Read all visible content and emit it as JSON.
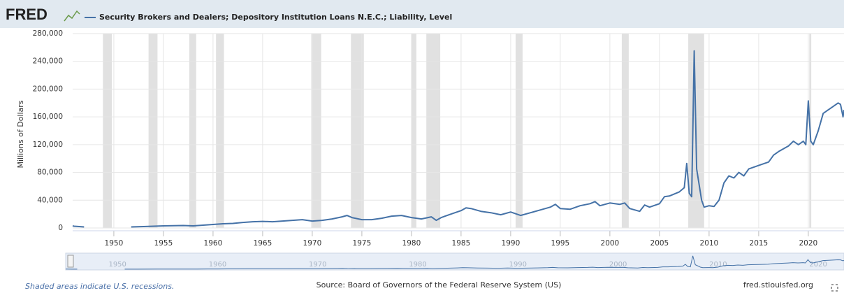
{
  "chart_data": {
    "type": "line",
    "logo": "FRED",
    "title": "Security Brokers and Dealers; Depository Institution Loans N.E.C.; Liability, Level",
    "ylabel": "Millions of Dollars",
    "source": "Source: Board of Governors of the Federal Reserve System (US)",
    "site": "fred.stlouisfed.org",
    "recession_note": "Shaded areas indicate U.S. recessions.",
    "grid": true,
    "xlim": [
      1945.85,
      2023.6
    ],
    "xticks": [
      1950,
      1955,
      1960,
      1965,
      1970,
      1975,
      1980,
      1985,
      1990,
      1995,
      2000,
      2005,
      2010,
      2015,
      2020
    ],
    "ylim": [
      0,
      280000
    ],
    "yticks": [
      0,
      {
        "value": 40000,
        "label": "40,000"
      },
      {
        "value": 80000,
        "label": "80,000"
      },
      {
        "value": 120000,
        "label": "120,000"
      },
      {
        "value": 160000,
        "label": "160,000"
      },
      {
        "value": 200000,
        "label": "200,000"
      },
      {
        "value": 240000,
        "label": "240,000"
      },
      {
        "value": 280000,
        "label": "280,000"
      }
    ],
    "recessions": [
      [
        1948.9,
        1949.8
      ],
      [
        1953.5,
        1954.4
      ],
      [
        1957.6,
        1958.3
      ],
      [
        1960.3,
        1961.1
      ],
      [
        1969.9,
        1970.9
      ],
      [
        1973.9,
        1975.2
      ],
      [
        1980.0,
        1980.5
      ],
      [
        1981.5,
        1982.9
      ],
      [
        1990.5,
        1991.2
      ],
      [
        2001.2,
        2001.9
      ],
      [
        2007.9,
        2009.5
      ],
      [
        2020.1,
        2020.3
      ]
    ],
    "x": [
      1945.85,
      1946.0,
      1946.5,
      1947.0,
      1947.25,
      1951.75,
      1953,
      1955,
      1957,
      1958,
      1959,
      1960,
      1961,
      1962,
      1963,
      1964,
      1965,
      1966,
      1967,
      1968,
      1969,
      1970,
      1971,
      1972,
      1973,
      1973.5,
      1974,
      1975,
      1976,
      1977,
      1978,
      1979,
      1980,
      1981,
      1982,
      1982.5,
      1983,
      1984,
      1985,
      1985.5,
      1986,
      1987,
      1988,
      1989,
      1990,
      1991,
      1992,
      1993,
      1994,
      1994.5,
      1995,
      1996,
      1997,
      1998,
      1998.5,
      1999,
      2000,
      2001,
      2001.5,
      2002,
      2003,
      2003.5,
      2004,
      2005,
      2005.5,
      2006,
      2007,
      2007.5,
      2007.75,
      2008.0,
      2008.25,
      2008.5,
      2008.75,
      2009.25,
      2009.5,
      2010,
      2010.5,
      2011,
      2011.5,
      2012,
      2012.5,
      2013,
      2013.5,
      2014,
      2015,
      2016,
      2016.5,
      2017,
      2018,
      2018.5,
      2019,
      2019.5,
      2019.75,
      2020.0,
      2020.25,
      2020.5,
      2021,
      2021.5,
      2022,
      2022.5,
      2023,
      2023.25,
      2023.5,
      2023.6
    ],
    "series": [
      {
        "name": "Security Brokers and Dealers; Depository Institution Loans N.E.C.; Liability, Level",
        "color": "#4572a7",
        "values": [
          3000,
          2500,
          2000,
          1500,
          null,
          1500,
          2000,
          3000,
          3500,
          3000,
          4000,
          5000,
          6000,
          6500,
          8000,
          9000,
          9500,
          9000,
          10000,
          11000,
          12000,
          10000,
          11000,
          13000,
          16000,
          18000,
          15000,
          12000,
          12000,
          14000,
          17000,
          18000,
          15000,
          13000,
          16000,
          11000,
          15000,
          20000,
          25000,
          29000,
          28000,
          24000,
          22000,
          19000,
          23000,
          18000,
          22000,
          26000,
          30000,
          34000,
          28000,
          27000,
          32000,
          35000,
          38000,
          32000,
          36000,
          34000,
          36000,
          28000,
          24000,
          33000,
          30000,
          35000,
          45000,
          46000,
          52000,
          58000,
          93000,
          50000,
          45000,
          255000,
          85000,
          40000,
          30000,
          32000,
          31000,
          40000,
          65000,
          75000,
          72000,
          80000,
          75000,
          85000,
          90000,
          95000,
          105000,
          110000,
          118000,
          125000,
          120000,
          125000,
          120000,
          183000,
          125000,
          120000,
          140000,
          165000,
          170000,
          175000,
          180000,
          178000,
          160000,
          170000
        ]
      }
    ]
  }
}
